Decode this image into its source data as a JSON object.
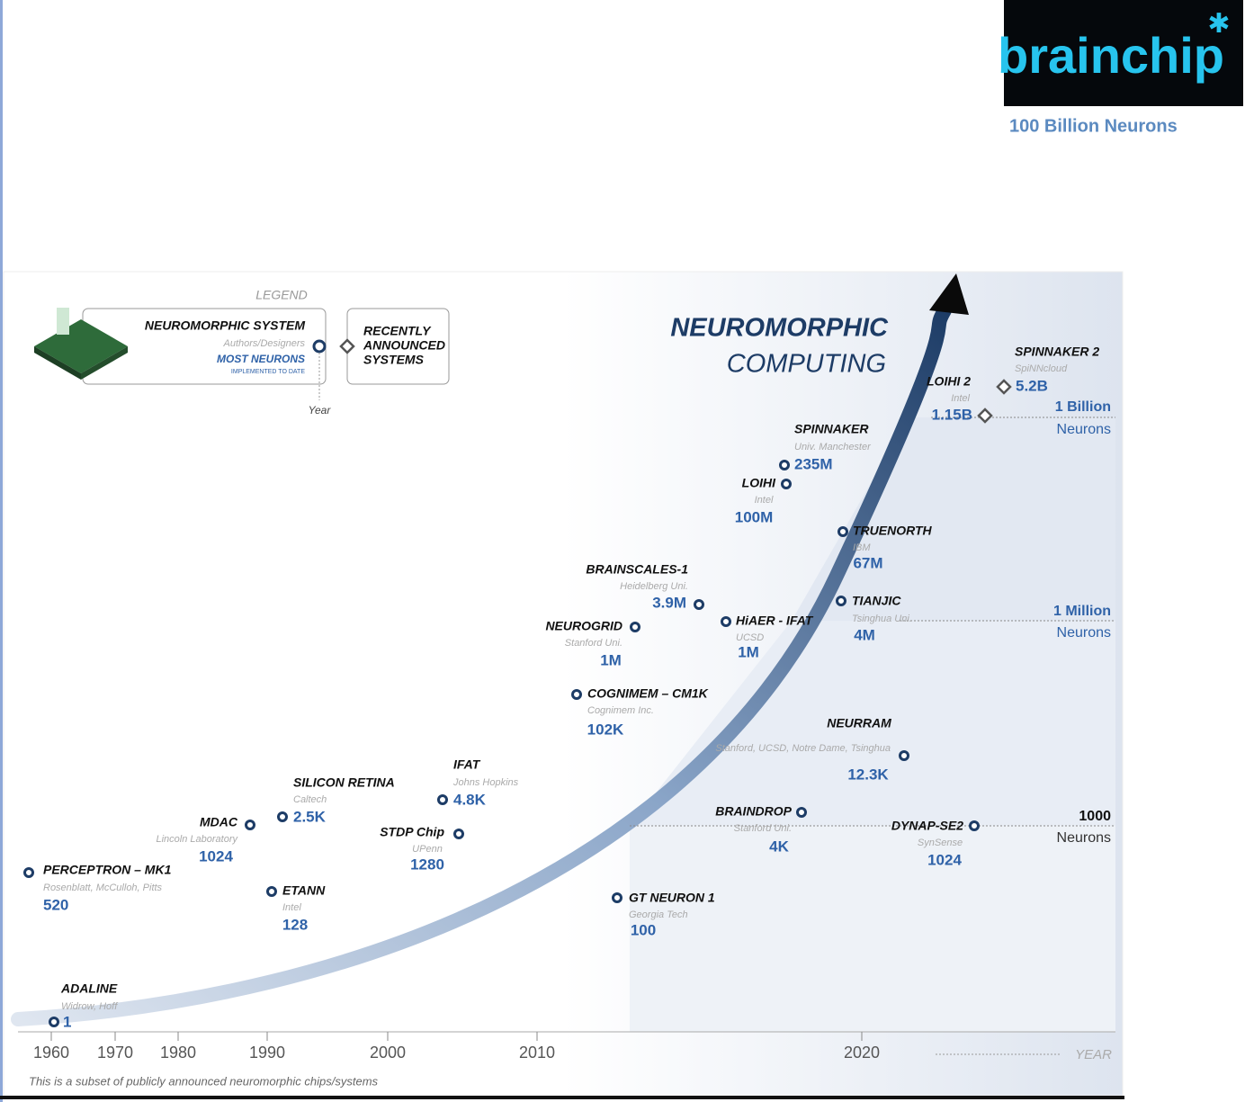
{
  "header": {
    "logo": "brainchip",
    "caption": "100 Billion Neurons"
  },
  "legend": {
    "title": "LEGEND",
    "system": "NEUROMORPHIC SYSTEM",
    "authors": "Authors/Designers",
    "most_neurons": "MOST NEURONS",
    "implemented": "IMPLEMENTED TO DATE",
    "year": "Year",
    "recent": [
      "RECENTLY",
      "ANNOUNCED",
      "SYSTEMS"
    ]
  },
  "title": [
    "NEUROMORPHIC",
    "COMPUTING"
  ],
  "systems": [
    {
      "name": "ADALINE",
      "org": "Widrow, Hoff",
      "neurons": "1"
    },
    {
      "name": "PERCEPTRON – MK1",
      "org": "Rosenblatt, McCulloh, Pitts",
      "neurons": "520"
    },
    {
      "name": "MDAC",
      "org": "Lincoln Laboratory",
      "neurons": "1024"
    },
    {
      "name": "ETANN",
      "org": "Intel",
      "neurons": "128"
    },
    {
      "name": "SILICON  RETINA",
      "org": "Caltech",
      "neurons": "2.5K"
    },
    {
      "name": "STDP Chip",
      "org": "UPenn",
      "neurons": "1280"
    },
    {
      "name": "IFAT",
      "org": "Johns Hopkins",
      "neurons": "4.8K"
    },
    {
      "name": "COGNIMEM – CM1K",
      "org": "Cognimem Inc.",
      "neurons": "102K"
    },
    {
      "name": "NEUROGRID",
      "org": "Stanford Uni.",
      "neurons": "1M"
    },
    {
      "name": "BRAINSCALES-1",
      "org": "Heidelberg Uni.",
      "neurons": "3.9M"
    },
    {
      "name": "HiAER - IFAT",
      "org": "UCSD",
      "neurons": "1M"
    },
    {
      "name": "GT NEURON 1",
      "org": "Georgia Tech",
      "neurons": "100"
    },
    {
      "name": "BRAINDROP",
      "org": "Stanford Uni.",
      "neurons": "4K"
    },
    {
      "name": "NEURRAM",
      "org": "Stanford, UCSD, Notre Dame, Tsinghua",
      "neurons": "12.3K"
    },
    {
      "name": "DYNAP-SE2",
      "org": "SynSense",
      "neurons": "1024"
    },
    {
      "name": "TIANJIC",
      "org": "Tsinghua Uni.",
      "neurons": "4M"
    },
    {
      "name": "TRUENORTH",
      "org": "IBM",
      "neurons": "67M"
    },
    {
      "name": "LOIHI",
      "org": "Intel",
      "neurons": "100M"
    },
    {
      "name": "SPINNAKER",
      "org": "Univ. Manchester",
      "neurons": "235M"
    },
    {
      "name": "LOIHI 2",
      "org": "Intel",
      "neurons": "1.15B"
    },
    {
      "name": "SPINNAKER 2",
      "org": "SpiNNcloud",
      "neurons": "5.2B"
    }
  ],
  "thresholds": [
    {
      "value": "1 Billion",
      "unit": "Neurons"
    },
    {
      "value": "1 Million",
      "unit": "Neurons"
    },
    {
      "value": "1000",
      "unit": "Neurons"
    }
  ],
  "years": [
    "1960",
    "1970",
    "1980",
    "1990",
    "2000",
    "2010",
    "2020"
  ],
  "axis_label": "YEAR",
  "footnote": "This is a subset of publicly announced neuromorphic chips/systems"
}
